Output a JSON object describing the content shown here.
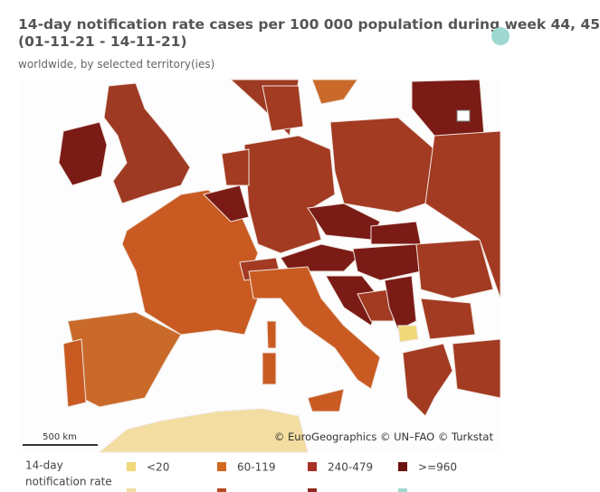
{
  "header": {
    "title": [
      "14-day notification rate cases per 100 000 population during week 44, 45",
      "(01-11-21 - 14-11-21)"
    ],
    "subtitle": "worldwide, by selected territory(ies)"
  },
  "map": {
    "scale": "500 km",
    "attribution": "© EuroGeographics © UN–FAO © Turkstat"
  },
  "legend": {
    "title": [
      "14-day",
      "notification rate"
    ],
    "items": [
      {
        "label": "<20",
        "color": "#f0d878"
      },
      {
        "label": "60-119",
        "color": "#d2691e"
      },
      {
        "label": "240-479",
        "color": "#a93226"
      },
      {
        "label": ">=960",
        "color": "#6b1410"
      }
    ]
  }
}
